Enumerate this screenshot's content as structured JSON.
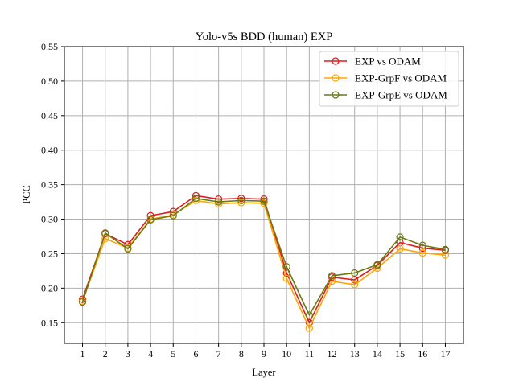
{
  "chart_data": {
    "type": "line",
    "title": "Yolo-v5s BDD (human) EXP",
    "xlabel": "Layer",
    "ylabel": "PCC",
    "x": [
      1,
      2,
      3,
      4,
      5,
      6,
      7,
      8,
      9,
      10,
      11,
      12,
      13,
      14,
      15,
      16,
      17
    ],
    "x_tick_labels": [
      "1",
      "2",
      "3",
      "4",
      "5",
      "6",
      "7",
      "8",
      "9",
      "10",
      "11",
      "12",
      "13",
      "14",
      "15",
      "16",
      "17"
    ],
    "xlim": [
      0.2,
      17.8
    ],
    "ylim": [
      0.12,
      0.55
    ],
    "y_ticks": [
      0.15,
      0.2,
      0.25,
      0.3,
      0.35,
      0.4,
      0.45,
      0.5,
      0.55
    ],
    "y_tick_labels": [
      "0.15",
      "0.20",
      "0.25",
      "0.30",
      "0.35",
      "0.40",
      "0.45",
      "0.50",
      "0.55"
    ],
    "grid": true,
    "legend_position": "top-right",
    "series": [
      {
        "name": "EXP vs ODAM",
        "color": "#e31a1c",
        "marker": "open-circle",
        "values": [
          0.184,
          0.279,
          0.263,
          0.305,
          0.311,
          0.334,
          0.329,
          0.33,
          0.329,
          0.222,
          0.15,
          0.216,
          0.212,
          0.233,
          0.266,
          0.258,
          0.255
        ]
      },
      {
        "name": "EXP-GrpF vs ODAM",
        "color": "#ffa500",
        "marker": "open-circle",
        "values": [
          0.181,
          0.272,
          0.258,
          0.3,
          0.306,
          0.327,
          0.322,
          0.324,
          0.323,
          0.214,
          0.142,
          0.21,
          0.205,
          0.229,
          0.257,
          0.251,
          0.248
        ]
      },
      {
        "name": "EXP-GrpE vs ODAM",
        "color": "#6b7a0f",
        "marker": "open-circle",
        "values": [
          0.18,
          0.28,
          0.257,
          0.299,
          0.305,
          0.33,
          0.325,
          0.327,
          0.326,
          0.231,
          0.161,
          0.218,
          0.222,
          0.234,
          0.274,
          0.262,
          0.256
        ]
      }
    ]
  }
}
